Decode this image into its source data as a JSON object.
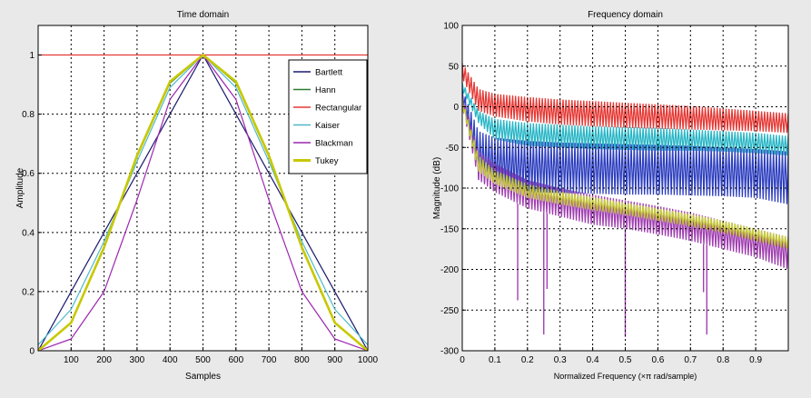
{
  "chart_data": [
    {
      "type": "line",
      "title": "Time domain",
      "xlabel": "Samples",
      "ylabel": "Amplitude",
      "xlim": [
        0,
        1000
      ],
      "ylim": [
        0,
        1.1
      ],
      "xticks": [
        100,
        200,
        300,
        400,
        500,
        600,
        700,
        800,
        900,
        1000
      ],
      "xtick_labels": [
        "100",
        "200",
        "300",
        "400",
        "500",
        "600",
        "700",
        "800",
        "900",
        "1000"
      ],
      "yticks": [
        0,
        0.2,
        0.4,
        0.6,
        0.8,
        1
      ],
      "ytick_labels": [
        "0",
        "0.2",
        "0.4",
        "0.6",
        "0.8",
        "1"
      ],
      "grid": true,
      "legend_position": "top-right",
      "series": [
        {
          "name": "Bartlett",
          "color": "#1a1a6e",
          "x": [
            0,
            100,
            200,
            300,
            400,
            500,
            600,
            700,
            800,
            900,
            1000
          ],
          "y": [
            0,
            0.2,
            0.4,
            0.6,
            0.8,
            1,
            0.8,
            0.6,
            0.4,
            0.2,
            0
          ]
        },
        {
          "name": "Hann",
          "color": "#2e7d32",
          "x": [
            0,
            100,
            200,
            300,
            400,
            500,
            600,
            700,
            800,
            900,
            1000
          ],
          "y": [
            0,
            0.095,
            0.345,
            0.655,
            0.905,
            1,
            0.905,
            0.655,
            0.345,
            0.095,
            0
          ]
        },
        {
          "name": "Rectangular",
          "color": "#e53935",
          "x": [
            0,
            100,
            200,
            300,
            400,
            500,
            600,
            700,
            800,
            900,
            1000
          ],
          "y": [
            1,
            1,
            1,
            1,
            1,
            1,
            1,
            1,
            1,
            1,
            1
          ]
        },
        {
          "name": "Kaiser",
          "color": "#4fb8c9",
          "x": [
            0,
            100,
            200,
            300,
            400,
            500,
            600,
            700,
            800,
            900,
            1000
          ],
          "y": [
            0.02,
            0.14,
            0.37,
            0.64,
            0.89,
            1,
            0.89,
            0.64,
            0.37,
            0.14,
            0.02
          ]
        },
        {
          "name": "Blackman",
          "color": "#9c27b0",
          "x": [
            0,
            100,
            200,
            300,
            400,
            500,
            600,
            700,
            800,
            900,
            1000
          ],
          "y": [
            0,
            0.04,
            0.2,
            0.51,
            0.85,
            1,
            0.85,
            0.51,
            0.2,
            0.04,
            0
          ]
        },
        {
          "name": "Tukey",
          "color": "#c8c800",
          "x": [
            0,
            100,
            200,
            300,
            400,
            500,
            600,
            700,
            800,
            900,
            1000
          ],
          "y": [
            0,
            0.095,
            0.35,
            0.66,
            0.91,
            1,
            0.91,
            0.66,
            0.35,
            0.095,
            0
          ]
        }
      ]
    },
    {
      "type": "line",
      "title": "Frequency domain",
      "xlabel": "Normalized Frequency (×π rad/sample)",
      "ylabel": "Magnitude (dB)",
      "xlim": [
        0,
        1
      ],
      "ylim": [
        -300,
        100
      ],
      "xticks": [
        0,
        0.1,
        0.2,
        0.3,
        0.4,
        0.5,
        0.6,
        0.7,
        0.8,
        0.9
      ],
      "xtick_labels": [
        "0",
        "0.1",
        "0.2",
        "0.3",
        "0.4",
        "0.5",
        "0.6",
        "0.7",
        "0.8",
        "0.9"
      ],
      "yticks": [
        -300,
        -250,
        -200,
        -150,
        -100,
        -50,
        0,
        50,
        100
      ],
      "ytick_labels": [
        "-300",
        "-250",
        "-200",
        "-150",
        "-100",
        "-50",
        "0",
        "50",
        "100"
      ],
      "grid": true,
      "series": [
        {
          "color": "#e53935",
          "x": [
            0,
            0.05,
            0.1,
            0.2,
            0.3,
            0.4,
            0.5,
            0.6,
            0.7,
            0.8,
            0.9,
            1
          ],
          "upper": [
            54,
            22,
            16,
            12,
            9,
            7,
            5,
            3,
            1,
            -2,
            -5,
            -8
          ],
          "lower": [
            35,
            -5,
            -12,
            -18,
            -22,
            -24,
            -26,
            -27,
            -28,
            -29,
            -30,
            -32
          ]
        },
        {
          "color": "#29b6c6",
          "x": [
            0,
            0.05,
            0.1,
            0.2,
            0.3,
            0.4,
            0.5,
            0.6,
            0.7,
            0.8,
            0.9,
            1
          ],
          "upper": [
            30,
            -5,
            -15,
            -20,
            -22,
            -24,
            -25,
            -26,
            -28,
            -30,
            -32,
            -36
          ],
          "lower": [
            20,
            -20,
            -40,
            -48,
            -50,
            -52,
            -53,
            -54,
            -54,
            -55,
            -57,
            -60
          ]
        },
        {
          "color": "#2e3fbf",
          "x": [
            0,
            0.05,
            0.1,
            0.2,
            0.3,
            0.4,
            0.5,
            0.6,
            0.7,
            0.8,
            0.9,
            1
          ],
          "upper": [
            22,
            -30,
            -38,
            -42,
            -44,
            -45,
            -46,
            -47,
            -48,
            -50,
            -52,
            -55
          ],
          "lower": [
            10,
            -90,
            -100,
            -105,
            -106,
            -107,
            -108,
            -108,
            -109,
            -110,
            -112,
            -120
          ]
        },
        {
          "color": "#a040b0",
          "x": [
            0,
            0.05,
            0.1,
            0.2,
            0.3,
            0.4,
            0.5,
            0.6,
            0.7,
            0.8,
            0.9,
            1
          ],
          "upper": [
            15,
            -55,
            -70,
            -90,
            -100,
            -108,
            -115,
            -122,
            -130,
            -140,
            -150,
            -160
          ],
          "lower": [
            0,
            -90,
            -105,
            -125,
            -135,
            -145,
            -150,
            -157,
            -165,
            -175,
            -185,
            -200
          ]
        },
        {
          "color": "#c5c83a",
          "x": [
            0,
            0.05,
            0.1,
            0.2,
            0.3,
            0.4,
            0.5,
            0.6,
            0.7,
            0.8,
            0.9,
            1
          ],
          "upper": [
            10,
            -60,
            -78,
            -95,
            -104,
            -111,
            -118,
            -125,
            -132,
            -140,
            -150,
            -160
          ],
          "lower": [
            0,
            -80,
            -95,
            -112,
            -120,
            -127,
            -133,
            -140,
            -147,
            -155,
            -165,
            -175
          ]
        }
      ],
      "spikes": [
        {
          "x": 0.25,
          "value": -280
        },
        {
          "x": 0.5,
          "value": -283
        },
        {
          "x": 0.75,
          "value": -280
        },
        {
          "x": 0.17,
          "value": -238
        },
        {
          "x": 0.26,
          "value": -224
        },
        {
          "x": 0.74,
          "value": -228
        }
      ]
    }
  ]
}
